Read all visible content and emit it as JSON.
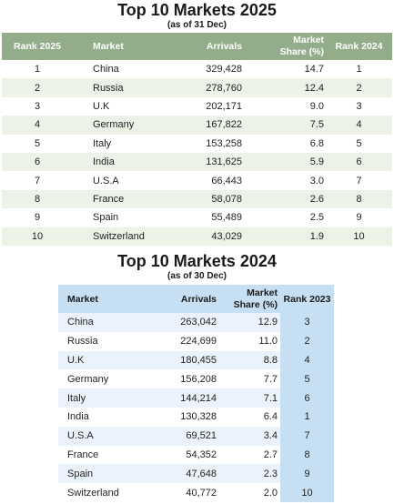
{
  "table2025": {
    "title": "Top 10 Markets 2025",
    "subtitle": "(as of 31 Dec)",
    "headers": {
      "rank": "Rank 2025",
      "market": "Market",
      "arrivals": "Arrivals",
      "share_line1": "Market",
      "share_line2": "Share (%)",
      "prev_rank": "Rank 2024"
    },
    "rows": [
      {
        "rank": "1",
        "market": "China",
        "arrivals": "329,428",
        "share": "14.7",
        "prev_rank": "1"
      },
      {
        "rank": "2",
        "market": "Russia",
        "arrivals": "278,760",
        "share": "12.4",
        "prev_rank": "2"
      },
      {
        "rank": "3",
        "market": "U.K",
        "arrivals": "202,171",
        "share": "9.0",
        "prev_rank": "3"
      },
      {
        "rank": "4",
        "market": "Germany",
        "arrivals": "167,822",
        "share": "7.5",
        "prev_rank": "4"
      },
      {
        "rank": "5",
        "market": "Italy",
        "arrivals": "153,258",
        "share": "6.8",
        "prev_rank": "5"
      },
      {
        "rank": "6",
        "market": "India",
        "arrivals": "131,625",
        "share": "5.9",
        "prev_rank": "6"
      },
      {
        "rank": "7",
        "market": "U.S.A",
        "arrivals": "66,443",
        "share": "3.0",
        "prev_rank": "7"
      },
      {
        "rank": "8",
        "market": "France",
        "arrivals": "58,078",
        "share": "2.6",
        "prev_rank": "8"
      },
      {
        "rank": "9",
        "market": "Spain",
        "arrivals": "55,489",
        "share": "2.5",
        "prev_rank": "9"
      },
      {
        "rank": "10",
        "market": "Switzerland",
        "arrivals": "43,029",
        "share": "1.9",
        "prev_rank": "10"
      }
    ]
  },
  "table2024": {
    "title": "Top 10 Markets 2024",
    "subtitle": "(as of 30 Dec)",
    "headers": {
      "market": "Market",
      "arrivals": "Arrivals",
      "share_line1": "Market",
      "share_line2": "Share (%)",
      "prev_rank": "Rank 2023"
    },
    "rows": [
      {
        "market": "China",
        "arrivals": "263,042",
        "share": "12.9",
        "prev_rank": "3"
      },
      {
        "market": "Russia",
        "arrivals": "224,699",
        "share": "11.0",
        "prev_rank": "2"
      },
      {
        "market": "U.K",
        "arrivals": "180,455",
        "share": "8.8",
        "prev_rank": "4"
      },
      {
        "market": "Germany",
        "arrivals": "156,208",
        "share": "7.7",
        "prev_rank": "5"
      },
      {
        "market": "Italy",
        "arrivals": "144,214",
        "share": "7.1",
        "prev_rank": "6"
      },
      {
        "market": "India",
        "arrivals": "130,328",
        "share": "6.4",
        "prev_rank": "1"
      },
      {
        "market": "U.S.A",
        "arrivals": "69,521",
        "share": "3.4",
        "prev_rank": "7"
      },
      {
        "market": "France",
        "arrivals": "54,352",
        "share": "2.7",
        "prev_rank": "8"
      },
      {
        "market": "Spain",
        "arrivals": "47,648",
        "share": "2.3",
        "prev_rank": "9"
      },
      {
        "market": "Switzerland",
        "arrivals": "40,772",
        "share": "2.0",
        "prev_rank": "10"
      }
    ]
  },
  "colors": {
    "header_2025": "#93ad8a",
    "stripe_2025": "#edf2e6",
    "header_2024": "#c6dff3",
    "stripe_2024": "#eaf3fb"
  }
}
